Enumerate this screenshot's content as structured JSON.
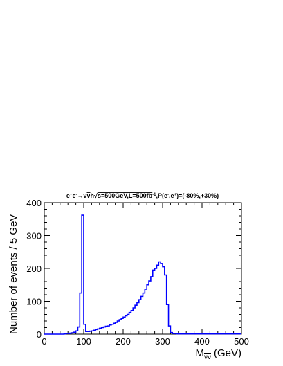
{
  "chart_data": {
    "type": "histogram",
    "title_parts": {
      "lead": "e",
      "sup1": "+",
      "mid1": "e",
      "sup2": "-",
      "arrow": "→",
      "nu": "ν",
      "nubar": "ν",
      "h": "h",
      "sqrt": "√",
      "s_rest": "s=500GeV,L=500fb",
      "sup3": "-1",
      "pol_a": ",P(e",
      "sup4": "-",
      "pol_b": ",e",
      "sup5": "+",
      "pol_c": ")=(-80%,+30%)"
    },
    "xlabel_main": "M",
    "xlabel_sub": "νν",
    "xlabel_unit": "(GeV)",
    "ylabel": "Number of events / 5 GeV",
    "xlim": [
      0,
      500
    ],
    "ylim": [
      0,
      400
    ],
    "x_ticks": [
      "0",
      "100",
      "200",
      "300",
      "400",
      "500"
    ],
    "y_ticks": [
      "0",
      "100",
      "200",
      "300",
      "400"
    ],
    "bin_width": 5,
    "bin_edges_start": 0,
    "values": [
      0,
      0,
      0,
      0,
      0,
      0,
      0,
      0,
      0,
      0,
      1,
      2,
      2,
      3,
      4,
      6,
      10,
      22,
      125,
      362,
      30,
      8,
      8,
      9,
      10,
      12,
      14,
      16,
      18,
      20,
      22,
      24,
      25,
      28,
      30,
      33,
      36,
      40,
      44,
      48,
      52,
      56,
      60,
      66,
      72,
      80,
      88,
      96,
      105,
      115,
      125,
      137,
      150,
      162,
      175,
      195,
      200,
      210,
      220,
      215,
      205,
      180,
      90,
      25,
      5,
      2,
      2,
      1,
      1,
      1,
      1,
      1,
      1,
      1,
      1,
      1,
      1,
      1,
      1,
      1,
      1,
      1,
      1,
      1,
      1,
      1,
      1,
      1,
      1,
      1,
      1,
      1,
      1,
      1,
      1,
      1,
      1,
      1,
      1,
      1
    ],
    "line_color": "#0000ff",
    "grid": false
  }
}
